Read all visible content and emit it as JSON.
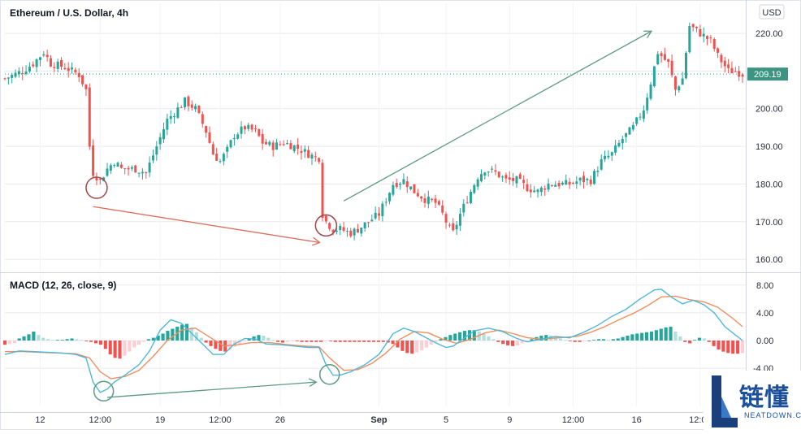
{
  "chart_data": [
    {
      "type": "candlestick",
      "title": "Ethereum / U.S. Dollar, 4h",
      "currency": "USD",
      "last_price": "209.19",
      "ylim": [
        157,
        228
      ],
      "y_ticks": [
        "160.00",
        "170.00",
        "180.00",
        "190.00",
        "200.00",
        "210.00",
        "220.00"
      ],
      "x_ticks": [
        "12",
        "12:00",
        "19",
        "12:00",
        "26",
        "Sep",
        "5",
        "9",
        "12:00",
        "16",
        "12:00"
      ],
      "close_path": [
        [
          0,
          208
        ],
        [
          5,
          210
        ],
        [
          8,
          212
        ],
        [
          11,
          215
        ],
        [
          13,
          212
        ],
        [
          17,
          211
        ],
        [
          21,
          209
        ],
        [
          23,
          205
        ],
        [
          24,
          190
        ],
        [
          25,
          183
        ],
        [
          27,
          181
        ],
        [
          29,
          184
        ],
        [
          31,
          186
        ],
        [
          33,
          184
        ],
        [
          37,
          184
        ],
        [
          40,
          183
        ],
        [
          43,
          190
        ],
        [
          46,
          197
        ],
        [
          49,
          200
        ],
        [
          51,
          202
        ],
        [
          54,
          200
        ],
        [
          57,
          194
        ],
        [
          59,
          188
        ],
        [
          61,
          186
        ],
        [
          63,
          189
        ],
        [
          65,
          193
        ],
        [
          68,
          195
        ],
        [
          71,
          194
        ],
        [
          73,
          191
        ],
        [
          76,
          190
        ],
        [
          79,
          191
        ],
        [
          82,
          190
        ],
        [
          86,
          188
        ],
        [
          88,
          187
        ],
        [
          89,
          187
        ],
        [
          90,
          172
        ],
        [
          91,
          170
        ],
        [
          93,
          168
        ],
        [
          95,
          168
        ],
        [
          98,
          167
        ],
        [
          100,
          168
        ],
        [
          103,
          170
        ],
        [
          106,
          172
        ],
        [
          108,
          176
        ],
        [
          110,
          180
        ],
        [
          113,
          181
        ],
        [
          116,
          178
        ],
        [
          119,
          176
        ],
        [
          122,
          175
        ],
        [
          124,
          172
        ],
        [
          126,
          168
        ],
        [
          127,
          167
        ],
        [
          129,
          172
        ],
        [
          131,
          176
        ],
        [
          134,
          182
        ],
        [
          136,
          184
        ],
        [
          139,
          183
        ],
        [
          142,
          181
        ],
        [
          145,
          181
        ],
        [
          148,
          179
        ],
        [
          151,
          178
        ],
        [
          154,
          180
        ],
        [
          157,
          180
        ],
        [
          160,
          180
        ],
        [
          163,
          181
        ],
        [
          166,
          181
        ],
        [
          169,
          186
        ],
        [
          172,
          188
        ],
        [
          175,
          192
        ],
        [
          178,
          195
        ],
        [
          181,
          200
        ],
        [
          183,
          207
        ],
        [
          185,
          215
        ],
        [
          188,
          212
        ],
        [
          190,
          205
        ],
        [
          192,
          208
        ],
        [
          194,
          222
        ],
        [
          197,
          220
        ],
        [
          200,
          218
        ],
        [
          202,
          214
        ],
        [
          205,
          210
        ],
        [
          207,
          210
        ],
        [
          209,
          209.19
        ]
      ],
      "annotations": [
        "down-trend arrow on price",
        "up-trend arrow on price",
        "circled lows"
      ]
    },
    {
      "type": "macd",
      "title": "MACD (12, 26, close, 9)",
      "ylim": [
        -9.5,
        9.5
      ],
      "y_ticks": [
        "8.00",
        "4.00",
        "0.00",
        "-4.00"
      ],
      "macd": [
        [
          0,
          -2
        ],
        [
          4,
          -1.5
        ],
        [
          8,
          -1.6
        ],
        [
          12,
          -1.7
        ],
        [
          16,
          -1.8
        ],
        [
          20,
          -2
        ],
        [
          23,
          -2.5
        ],
        [
          25,
          -6
        ],
        [
          27,
          -7.5
        ],
        [
          29,
          -7
        ],
        [
          31,
          -6
        ],
        [
          34,
          -5
        ],
        [
          38,
          -3.5
        ],
        [
          41,
          -1.5
        ],
        [
          44,
          1.5
        ],
        [
          47,
          3
        ],
        [
          50,
          2.5
        ],
        [
          53,
          1
        ],
        [
          56,
          -0.5
        ],
        [
          59,
          -2
        ],
        [
          62,
          -2
        ],
        [
          65,
          -0.5
        ],
        [
          68,
          0.3
        ],
        [
          71,
          0.2
        ],
        [
          74,
          -0.5
        ],
        [
          78,
          -0.6
        ],
        [
          82,
          -0.8
        ],
        [
          86,
          -1
        ],
        [
          89,
          -1
        ],
        [
          91,
          -3.5
        ],
        [
          93,
          -5
        ],
        [
          95,
          -5
        ],
        [
          98,
          -4.5
        ],
        [
          102,
          -3.5
        ],
        [
          106,
          -2
        ],
        [
          110,
          1
        ],
        [
          113,
          1.8
        ],
        [
          116,
          1.3
        ],
        [
          119,
          0.5
        ],
        [
          122,
          -0.3
        ],
        [
          125,
          -1
        ],
        [
          127,
          -0.8
        ],
        [
          130,
          0.3
        ],
        [
          133,
          1.4
        ],
        [
          137,
          1.8
        ],
        [
          141,
          1.3
        ],
        [
          145,
          0.3
        ],
        [
          148,
          -0.2
        ],
        [
          152,
          0.2
        ],
        [
          156,
          0.6
        ],
        [
          160,
          0.4
        ],
        [
          164,
          1.2
        ],
        [
          168,
          2.2
        ],
        [
          172,
          3.5
        ],
        [
          176,
          4.5
        ],
        [
          180,
          6
        ],
        [
          184,
          7.3
        ],
        [
          186,
          7.4
        ],
        [
          189,
          6.2
        ],
        [
          192,
          5.3
        ],
        [
          195,
          5.8
        ],
        [
          198,
          5.2
        ],
        [
          201,
          4
        ],
        [
          204,
          2
        ],
        [
          207,
          0.8
        ],
        [
          209,
          0
        ]
      ],
      "signal": [
        [
          0,
          -1.6
        ],
        [
          5,
          -1.6
        ],
        [
          10,
          -1.7
        ],
        [
          15,
          -1.8
        ],
        [
          20,
          -1.9
        ],
        [
          24,
          -2.5
        ],
        [
          27,
          -4.5
        ],
        [
          30,
          -5.5
        ],
        [
          34,
          -5.2
        ],
        [
          38,
          -4.3
        ],
        [
          42,
          -2.3
        ],
        [
          46,
          0
        ],
        [
          50,
          1.5
        ],
        [
          54,
          1.8
        ],
        [
          58,
          0.5
        ],
        [
          62,
          -0.8
        ],
        [
          66,
          -0.6
        ],
        [
          70,
          -0.3
        ],
        [
          75,
          -0.3
        ],
        [
          80,
          -0.6
        ],
        [
          85,
          -0.8
        ],
        [
          89,
          -0.9
        ],
        [
          92,
          -2.5
        ],
        [
          96,
          -4.3
        ],
        [
          100,
          -4.2
        ],
        [
          104,
          -3.3
        ],
        [
          108,
          -1.8
        ],
        [
          112,
          0.2
        ],
        [
          116,
          1.3
        ],
        [
          120,
          1.1
        ],
        [
          124,
          0.2
        ],
        [
          128,
          -0.4
        ],
        [
          132,
          0.2
        ],
        [
          136,
          1.1
        ],
        [
          140,
          1.5
        ],
        [
          144,
          1
        ],
        [
          148,
          0.4
        ],
        [
          152,
          0.2
        ],
        [
          157,
          0.4
        ],
        [
          162,
          0.6
        ],
        [
          166,
          1.2
        ],
        [
          170,
          2
        ],
        [
          174,
          3
        ],
        [
          178,
          3.9
        ],
        [
          182,
          5
        ],
        [
          186,
          6.3
        ],
        [
          190,
          6.4
        ],
        [
          194,
          5.9
        ],
        [
          198,
          5.6
        ],
        [
          202,
          4.8
        ],
        [
          206,
          3.3
        ],
        [
          209,
          2
        ]
      ],
      "histogram": [
        -0.6,
        -0.5,
        -0.4,
        0.3,
        0.6,
        0.9,
        1.3,
        0.8,
        0.4,
        0.2,
        0.1,
        0.1,
        0.1,
        0.2,
        0.3,
        0.2,
        0.1,
        -0.1,
        -0.2,
        -0.4,
        -0.6,
        -1.2,
        -2,
        -2.5,
        -2.6,
        -2.2,
        -1.6,
        -1,
        -0.6,
        -0.2,
        0.2,
        0.4,
        0.7,
        1,
        1.4,
        1.7,
        2,
        2.3,
        2.4,
        1.9,
        1.2,
        0.4,
        -0.3,
        -0.8,
        -1.2,
        -1.5,
        -1.6,
        -1.3,
        -0.9,
        -0.5,
        -0.1,
        0.3,
        0.6,
        0.8,
        0.7,
        0.4,
        0.1,
        -0.2,
        -0.3,
        -0.2,
        -0.1,
        -0.1,
        -0.2,
        -0.2,
        -0.2,
        -0.2,
        -0.2,
        -0.1,
        -0.1,
        -0.2,
        -0.2,
        -0.2,
        -0.2,
        -0.2,
        -0.2,
        -0.2,
        -0.2,
        -0.2,
        -0.2,
        -0.2,
        -0.3,
        -0.5,
        -1,
        -1.5,
        -1.8,
        -1.9,
        -1.7,
        -1.4,
        -1,
        -0.6,
        -0.2,
        0.2,
        0.5,
        0.8,
        1,
        1.2,
        1.4,
        1.5,
        1.5,
        1.3,
        1,
        0.6,
        0.2,
        -0.2,
        -0.5,
        -0.7,
        -0.8,
        -0.7,
        -0.4,
        -0.1,
        0.2,
        0.5,
        0.7,
        0.8,
        0.7,
        0.5,
        0.3,
        0.1,
        -0.1,
        -0.2,
        -0.2,
        -0.1,
        0,
        0.1,
        0.2,
        0.2,
        0.1,
        0.2,
        0.3,
        0.5,
        0.7,
        0.9,
        1,
        1.1,
        1.2,
        1.3,
        1.5,
        1.7,
        1.9,
        2,
        1.3,
        0.6,
        -0.2,
        -0.4,
        0.1,
        0.4,
        0.3,
        -0.2,
        -0.8,
        -1.3,
        -1.6,
        -1.8,
        -1.9,
        -1.9,
        -1.8
      ]
    }
  ],
  "colors": {
    "up": "#26a69a",
    "down": "#ef5350",
    "down_arrow": "#d9705f",
    "up_arrow": "#5c9a82",
    "circle": "#9a4848",
    "circle_macd": "#5c9a82",
    "macd_line": "#4fb8d6",
    "signal_line": "#f08e60",
    "hist_up": "#26a69a",
    "hist_up_light": "#b2dfdb",
    "hist_down": "#ef5350",
    "hist_down_light": "#ffcdd2",
    "price_badge": "#3c9582",
    "grid": "#e8eaee"
  },
  "watermark": {
    "title": "链懂",
    "subtitle": "NEATDOWN.COM"
  }
}
